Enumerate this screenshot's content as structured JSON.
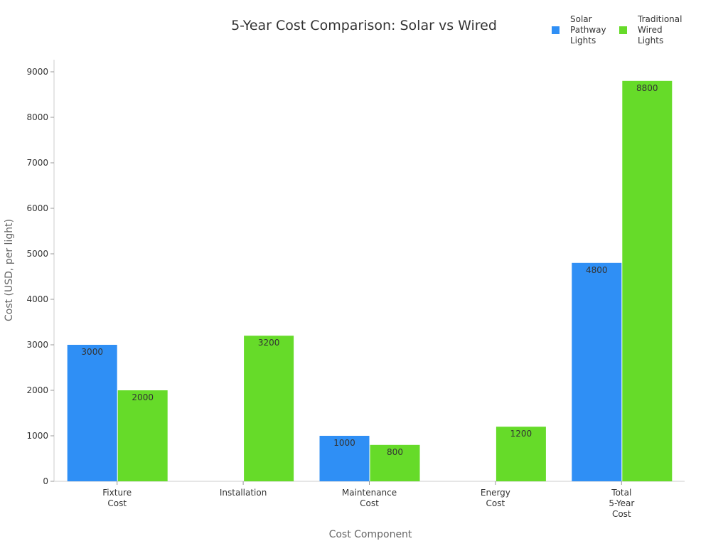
{
  "chart_data": {
    "type": "bar",
    "title": "5-Year Cost Comparison: Solar vs Wired",
    "xlabel": "Cost Component",
    "ylabel": "Cost (USD, per light)",
    "categories": [
      [
        "Fixture",
        "Cost"
      ],
      [
        "Installation"
      ],
      [
        "Maintenance",
        "Cost"
      ],
      [
        "Energy",
        "Cost"
      ],
      [
        "Total",
        "5-Year",
        "Cost"
      ]
    ],
    "series": [
      {
        "name": [
          "Solar",
          "Pathway",
          "Lights"
        ],
        "color": "#2f8ff5",
        "values": [
          3000,
          0,
          1000,
          0,
          4800
        ]
      },
      {
        "name": [
          "Traditional",
          "Wired",
          "Lights"
        ],
        "color": "#66db29",
        "values": [
          2000,
          3200,
          800,
          1200,
          8800
        ]
      }
    ],
    "ylim": [
      0,
      9000
    ],
    "yticks": [
      0,
      1000,
      2000,
      3000,
      4000,
      5000,
      6000,
      7000,
      8000,
      9000
    ],
    "grid": false,
    "legend": "top-right"
  }
}
